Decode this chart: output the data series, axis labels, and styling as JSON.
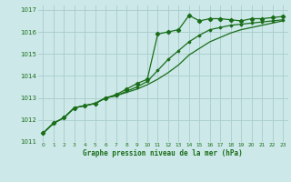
{
  "title": "Graphe pression niveau de la mer (hPa)",
  "bg_color": "#cce8e8",
  "grid_color": "#aacccc",
  "line_color": "#1a6e1a",
  "text_color": "#1a6e1a",
  "xlim": [
    -0.5,
    23.5
  ],
  "ylim": [
    1011.0,
    1017.2
  ],
  "yticks": [
    1011,
    1012,
    1013,
    1014,
    1015,
    1016,
    1017
  ],
  "xticks": [
    0,
    1,
    2,
    3,
    4,
    5,
    6,
    7,
    8,
    9,
    10,
    11,
    12,
    13,
    14,
    15,
    16,
    17,
    18,
    19,
    20,
    21,
    22,
    23
  ],
  "series": [
    [
      1011.4,
      1011.85,
      1012.1,
      1012.55,
      1012.65,
      1012.75,
      1013.0,
      1013.15,
      1013.4,
      1013.65,
      1013.85,
      1015.9,
      1016.0,
      1016.1,
      1016.75,
      1016.5,
      1016.6,
      1016.6,
      1016.55,
      1016.5,
      1016.6,
      1016.6,
      1016.65,
      1016.7
    ],
    [
      1011.4,
      1011.85,
      1012.1,
      1012.55,
      1012.65,
      1012.75,
      1013.0,
      1013.1,
      1013.3,
      1013.5,
      1013.75,
      1014.25,
      1014.75,
      1015.15,
      1015.55,
      1015.85,
      1016.1,
      1016.2,
      1016.3,
      1016.35,
      1016.4,
      1016.45,
      1016.5,
      1016.55
    ],
    [
      1011.4,
      1011.85,
      1012.1,
      1012.55,
      1012.65,
      1012.75,
      1013.0,
      1013.1,
      1013.25,
      1013.4,
      1013.6,
      1013.85,
      1014.15,
      1014.5,
      1014.95,
      1015.25,
      1015.55,
      1015.75,
      1015.95,
      1016.1,
      1016.2,
      1016.3,
      1016.4,
      1016.5
    ]
  ]
}
